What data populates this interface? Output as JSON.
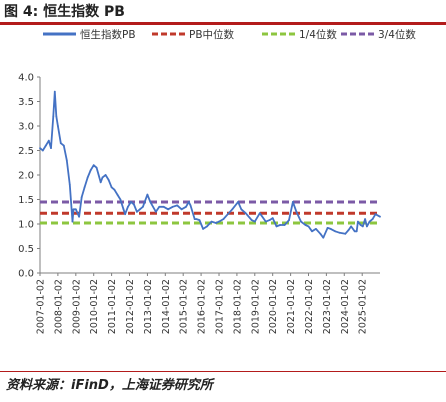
{
  "figure": {
    "title": "图 4:  恒生指数 PB",
    "source": "资料来源：iFinD，上海证券研究所"
  },
  "chart_data": {
    "type": "line",
    "title": "",
    "xlabel": "",
    "ylabel": "",
    "ylim": [
      0.0,
      4.0
    ],
    "yticks": [
      "0.0",
      "0.5",
      "1.0",
      "1.5",
      "2.0",
      "2.5",
      "3.0",
      "3.5",
      "4.0"
    ],
    "xlim": [
      "2007-01-02",
      "2025-12-31"
    ],
    "xticks": [
      "2007-01-02",
      "2008-01-02",
      "2009-01-02",
      "2010-01-02",
      "2011-01-02",
      "2012-01-02",
      "2013-01-02",
      "2014-01-02",
      "2015-01-02",
      "2016-01-02",
      "2017-01-02",
      "2018-01-02",
      "2019-01-02",
      "2020-01-02",
      "2021-01-02",
      "2022-01-02",
      "2023-01-02",
      "2024-01-02",
      "2025-01-02"
    ],
    "grid": false,
    "legend_position": "top",
    "series": [
      {
        "name": "恒生指数PB",
        "style": "solid",
        "color": "#4472c4",
        "x": [
          "2007-01-02",
          "2007-03-01",
          "2007-05-01",
          "2007-07-01",
          "2007-08-15",
          "2007-10-01",
          "2007-10-30",
          "2007-12-01",
          "2008-01-02",
          "2008-03-01",
          "2008-05-01",
          "2008-07-01",
          "2008-09-01",
          "2008-10-27",
          "2008-11-15",
          "2009-01-02",
          "2009-03-09",
          "2009-05-01",
          "2009-07-01",
          "2009-09-01",
          "2009-11-01",
          "2010-01-02",
          "2010-03-01",
          "2010-05-25",
          "2010-07-01",
          "2010-09-01",
          "2010-11-01",
          "2011-01-02",
          "2011-03-01",
          "2011-05-01",
          "2011-07-01",
          "2011-09-01",
          "2011-10-04",
          "2011-12-01",
          "2012-02-01",
          "2012-04-01",
          "2012-06-01",
          "2012-08-01",
          "2012-10-01",
          "2013-01-02",
          "2013-03-01",
          "2013-06-25",
          "2013-09-01",
          "2013-12-01",
          "2014-03-01",
          "2014-06-01",
          "2014-09-01",
          "2014-12-01",
          "2015-03-01",
          "2015-04-27",
          "2015-06-01",
          "2015-08-24",
          "2015-10-01",
          "2015-12-01",
          "2016-02-12",
          "2016-05-01",
          "2016-08-01",
          "2016-11-01",
          "2017-01-02",
          "2017-04-01",
          "2017-07-01",
          "2017-10-01",
          "2018-01-26",
          "2018-04-01",
          "2018-07-01",
          "2018-10-30",
          "2019-01-02",
          "2019-04-15",
          "2019-08-15",
          "2019-11-01",
          "2020-01-02",
          "2020-03-19",
          "2020-06-01",
          "2020-09-01",
          "2020-12-01",
          "2021-02-17",
          "2021-05-01",
          "2021-08-01",
          "2021-11-01",
          "2022-01-02",
          "2022-03-15",
          "2022-06-01",
          "2022-09-01",
          "2022-10-31",
          "2023-01-27",
          "2023-04-01",
          "2023-07-01",
          "2023-10-01",
          "2024-01-22",
          "2024-04-01",
          "2024-05-20",
          "2024-08-01",
          "2024-09-11",
          "2024-10-07",
          "2024-12-01",
          "2025-01-13",
          "2025-03-01",
          "2025-04-08",
          "2025-06-01",
          "2025-08-01",
          "2025-10-01",
          "2025-12-31"
        ],
        "values": [
          2.55,
          2.5,
          2.6,
          2.7,
          2.55,
          3.2,
          3.7,
          3.2,
          3.0,
          2.65,
          2.6,
          2.3,
          1.8,
          1.05,
          1.3,
          1.3,
          1.15,
          1.55,
          1.75,
          1.95,
          2.1,
          2.2,
          2.15,
          1.85,
          1.95,
          2.0,
          1.9,
          1.75,
          1.7,
          1.6,
          1.5,
          1.3,
          1.2,
          1.35,
          1.45,
          1.4,
          1.25,
          1.3,
          1.35,
          1.6,
          1.45,
          1.25,
          1.35,
          1.35,
          1.3,
          1.35,
          1.38,
          1.3,
          1.35,
          1.45,
          1.38,
          1.1,
          1.1,
          1.08,
          0.9,
          0.95,
          1.05,
          1.02,
          1.05,
          1.1,
          1.2,
          1.3,
          1.45,
          1.3,
          1.22,
          1.08,
          1.05,
          1.22,
          1.05,
          1.08,
          1.12,
          0.95,
          0.98,
          0.98,
          1.08,
          1.45,
          1.25,
          1.05,
          0.98,
          0.95,
          0.85,
          0.9,
          0.8,
          0.72,
          0.92,
          0.9,
          0.85,
          0.82,
          0.8,
          0.88,
          0.95,
          0.85,
          0.85,
          1.05,
          0.98,
          0.95,
          1.1,
          0.95,
          1.05,
          1.1,
          1.2,
          1.15
        ]
      },
      {
        "name": "PB中位数",
        "style": "dashed",
        "color": "#c0392b",
        "constant": 1.22
      },
      {
        "name": "1/4位数",
        "style": "dashed",
        "color": "#8dc63f",
        "constant": 1.02
      },
      {
        "name": "3/4位数",
        "style": "dashed",
        "color": "#7b5aa6",
        "constant": 1.45
      }
    ]
  }
}
